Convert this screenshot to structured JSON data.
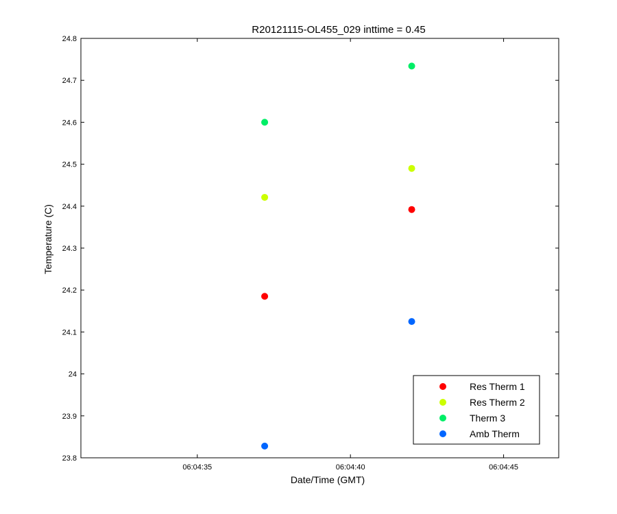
{
  "chart_data": {
    "type": "scatter",
    "title": "R20121115-OL455_029 inttime = 0.45",
    "xlabel": "Date/Time (GMT)",
    "ylabel": "Temperature (C)",
    "x_axis": {
      "type": "time",
      "range": [
        "06:04:31.2",
        "06:04:46.8"
      ],
      "ticks": [
        "06:04:35",
        "06:04:40",
        "06:04:45"
      ]
    },
    "y_axis": {
      "range": [
        23.8,
        24.8
      ],
      "ticks": [
        "23.8",
        "23.9",
        "24",
        "24.1",
        "24.2",
        "24.3",
        "24.4",
        "24.5",
        "24.6",
        "24.7",
        "24.8"
      ]
    },
    "grid": false,
    "legend_position": "bottom-right",
    "series": [
      {
        "name": "Res Therm 1",
        "color": "#ff0000",
        "points": [
          {
            "x": "06:04:37.2",
            "y": 24.185
          },
          {
            "x": "06:04:42.0",
            "y": 24.392
          }
        ]
      },
      {
        "name": "Res Therm 2",
        "color": "#ccff00",
        "points": [
          {
            "x": "06:04:37.2",
            "y": 24.421
          },
          {
            "x": "06:04:42.0",
            "y": 24.49
          }
        ]
      },
      {
        "name": "Therm 3",
        "color": "#00ee66",
        "points": [
          {
            "x": "06:04:37.2",
            "y": 24.6
          },
          {
            "x": "06:04:42.0",
            "y": 24.734
          }
        ]
      },
      {
        "name": "Amb Therm",
        "color": "#0066ff",
        "points": [
          {
            "x": "06:04:37.2",
            "y": 23.828
          },
          {
            "x": "06:04:42.0",
            "y": 24.125
          }
        ]
      }
    ]
  }
}
